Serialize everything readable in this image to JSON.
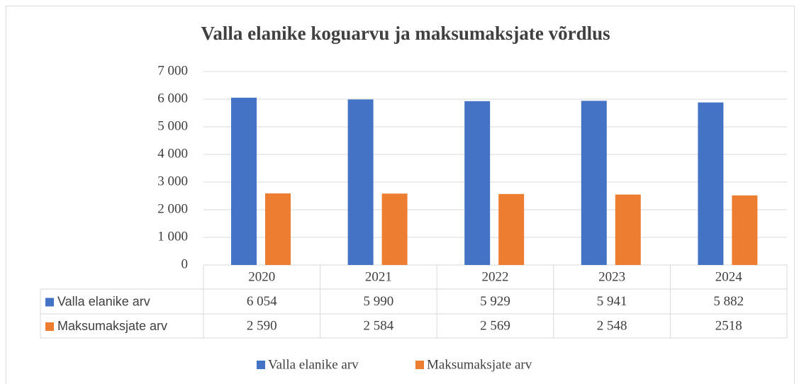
{
  "chart_data": {
    "type": "bar",
    "title": "Valla elanike koguarvu ja maksumaksjate võrdlus",
    "categories": [
      "2020",
      "2021",
      "2022",
      "2023",
      "2024"
    ],
    "series": [
      {
        "name": "Valla elanike arv",
        "color": "#4472c4",
        "values": [
          6054,
          5990,
          5929,
          5941,
          5882
        ],
        "value_labels": [
          "6 054",
          "5 990",
          "5 929",
          "5 941",
          "5 882"
        ]
      },
      {
        "name": "Maksumaksjate arv",
        "color": "#ed7d31",
        "values": [
          2590,
          2584,
          2569,
          2548,
          2518
        ],
        "value_labels": [
          "2 590",
          "2 584",
          "2 569",
          "2 548",
          "2518"
        ]
      }
    ],
    "ylim": [
      0,
      7000
    ],
    "yticks": [
      0,
      {
        "value": 1000,
        "label": "1 000"
      },
      {
        "value": 2000,
        "label": "2 000"
      },
      {
        "value": 3000,
        "label": "3 000"
      },
      {
        "value": 4000,
        "label": "4 000"
      },
      {
        "value": 5000,
        "label": "5 000"
      },
      {
        "value": 6000,
        "label": "6 000"
      },
      {
        "value": 7000,
        "label": "7 000"
      }
    ],
    "grid": true,
    "legend": "bottom"
  }
}
